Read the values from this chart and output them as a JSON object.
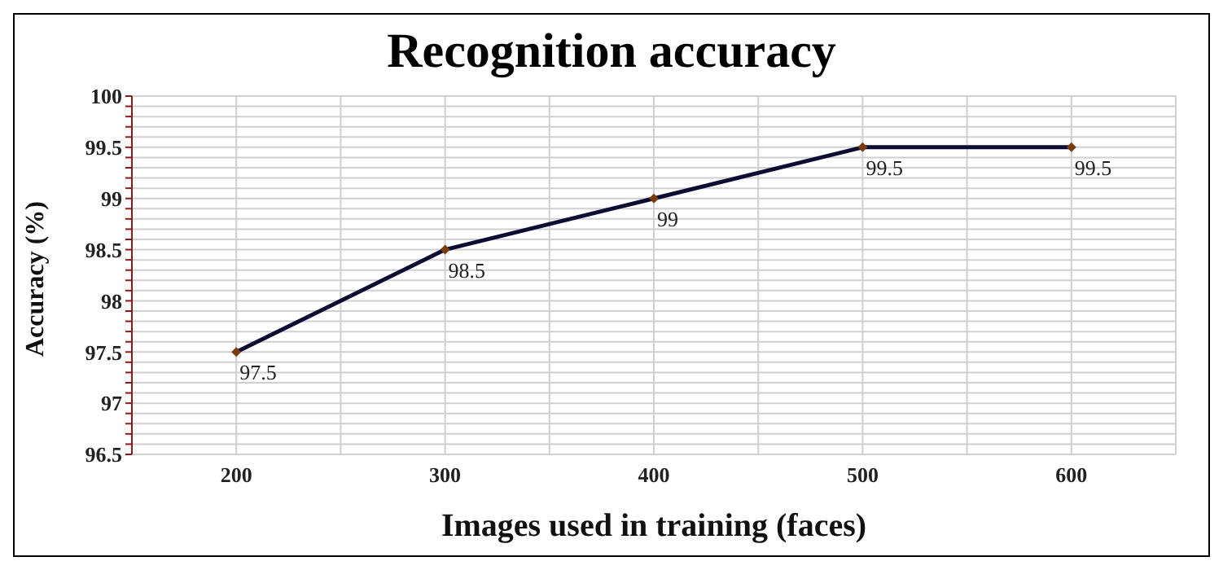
{
  "chart_data": {
    "type": "line",
    "title": "Recognition accuracy",
    "xlabel": "Images used in training (faces)",
    "ylabel": "Accuracy (%)",
    "x": [
      200,
      300,
      400,
      500,
      600
    ],
    "series": [
      {
        "color": "#0d0d33",
        "values": [
          97.5,
          98.5,
          99,
          99.5,
          99.5
        ]
      }
    ],
    "xlim": [
      150,
      650
    ],
    "xticks": [
      {
        "value": 150,
        "label": null
      },
      200,
      {
        "value": 250,
        "label": null
      },
      300,
      {
        "value": 350,
        "label": null
      },
      400,
      {
        "value": 450,
        "label": null
      },
      500,
      {
        "value": 550,
        "label": null
      },
      600,
      {
        "value": 650,
        "label": null
      }
    ],
    "ylim": [
      96.5,
      100
    ],
    "yticks": [
      96.5,
      {
        "value": 96.6,
        "label": null
      },
      {
        "value": 96.7,
        "label": null
      },
      {
        "value": 96.8,
        "label": null
      },
      {
        "value": 96.9,
        "label": null
      },
      97,
      {
        "value": 97.1,
        "label": null
      },
      {
        "value": 97.2,
        "label": null
      },
      {
        "value": 97.3,
        "label": null
      },
      {
        "value": 97.4,
        "label": null
      },
      97.5,
      {
        "value": 97.6,
        "label": null
      },
      {
        "value": 97.7,
        "label": null
      },
      {
        "value": 97.8,
        "label": null
      },
      {
        "value": 97.9,
        "label": null
      },
      98,
      {
        "value": 98.1,
        "label": null
      },
      {
        "value": 98.2,
        "label": null
      },
      {
        "value": 98.3,
        "label": null
      },
      {
        "value": 98.4,
        "label": null
      },
      98.5,
      {
        "value": 98.6,
        "label": null
      },
      {
        "value": 98.7,
        "label": null
      },
      {
        "value": 98.8,
        "label": null
      },
      {
        "value": 98.9,
        "label": null
      },
      99,
      {
        "value": 99.1,
        "label": null
      },
      {
        "value": 99.2,
        "label": null
      },
      {
        "value": 99.3,
        "label": null
      },
      {
        "value": 99.4,
        "label": null
      },
      99.5,
      {
        "value": 99.6,
        "label": null
      },
      {
        "value": 99.7,
        "label": null
      },
      {
        "value": 99.8,
        "label": null
      },
      {
        "value": 99.9,
        "label": null
      },
      100
    ],
    "grid": true,
    "marker": "diamond",
    "line_style": "solid",
    "data_labels": true
  }
}
